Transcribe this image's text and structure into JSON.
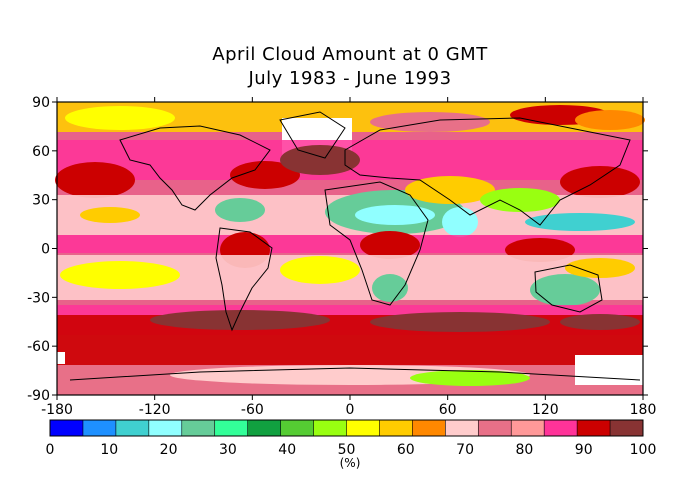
{
  "title": {
    "line1": "April Cloud Amount at 0 GMT",
    "line2": "July 1983 - June 1993"
  },
  "map": {
    "lon_ticks": [
      "-180",
      "-120",
      "-60",
      "0",
      "60",
      "120",
      "180"
    ],
    "lat_ticks": [
      "90",
      "60",
      "30",
      "0",
      "-30",
      "-60",
      "-90"
    ],
    "lon_range": [
      -180,
      180
    ],
    "lat_range": [
      -90,
      90
    ],
    "background_color": "#e8628a"
  },
  "colorbar": {
    "unit_label": "(%)",
    "tick_labels": [
      "0",
      "10",
      "20",
      "30",
      "40",
      "50",
      "60",
      "70",
      "80",
      "90",
      "100"
    ],
    "colors": [
      "#0000ff",
      "#1e90ff",
      "#40d0d0",
      "#90ffff",
      "#66cc99",
      "#33ff99",
      "#11a040",
      "#55cc33",
      "#99ff11",
      "#ffff00",
      "#ffcc00",
      "#ff8800",
      "#ffcccc",
      "#e87088",
      "#ff9999",
      "#ff3399",
      "#cc0000",
      "#883333"
    ]
  }
}
